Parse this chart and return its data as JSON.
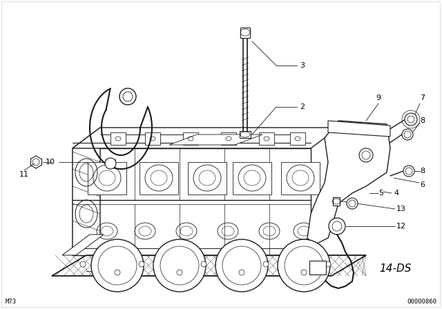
{
  "background_color": "#ffffff",
  "line_color": "#1a1a1a",
  "fig_width": 6.4,
  "fig_height": 4.48,
  "dpi": 100,
  "bottom_left_text": "M73",
  "bottom_right_text": "00000860",
  "label_14ds": "14-DS",
  "label_fontsize": 8,
  "small_fontsize": 6.5,
  "callout_lw": 0.6
}
